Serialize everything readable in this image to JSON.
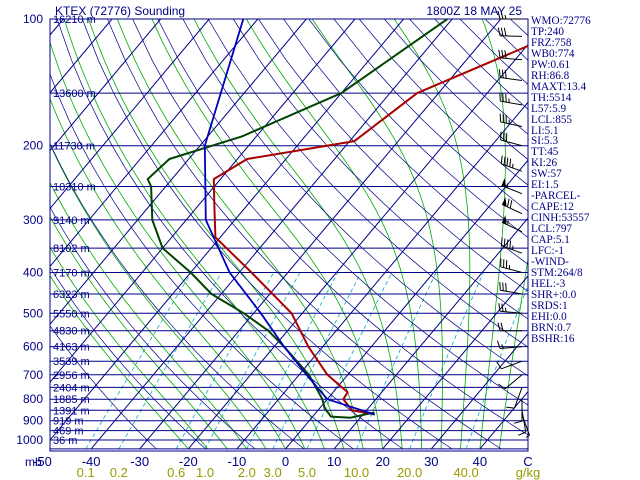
{
  "header": {
    "station": "KTEX (72776) Sounding",
    "time": "1800Z 18 MAY 25"
  },
  "indices": [
    "WMO:72776",
    "TP:240",
    "FRZ:758",
    "WB0:774",
    "PW:0.61",
    "RH:86.8",
    "MAXT:13.4",
    "TH:5514",
    "L57:5.9",
    "LCL:855",
    "LI:5.1",
    "SI:5.3",
    "TT:45",
    "KI:26",
    "SW:57",
    "EI:1.5",
    "-PARCEL-",
    "CAPE:12",
    "CINH:53557",
    "LCL:797",
    "CAP:5.1",
    "LFC:-1",
    "-WIND-",
    "STM:264/8",
    "HEL:-3",
    "SHR+:0.0",
    "SRDS:1",
    "EHI:0.0",
    "BRN:0.7",
    "BSHR:16"
  ],
  "colors": {
    "frame": "#000088",
    "isobar": "#000088",
    "isotherm": "#000088",
    "dry_adiabat": "#000088",
    "moist_adiabat": "#00aa00",
    "mixing_ratio": "#00aacc",
    "temperature": "#aa0000",
    "dewpoint": "#004400",
    "parcel": "#0000bb",
    "wind_barb": "#000000",
    "mixing_label": "#999900"
  },
  "chart_data": {
    "type": "skew-t",
    "pressure_axis": {
      "unit": "mb",
      "range": [
        1050,
        100
      ],
      "ticks": [
        100,
        200,
        300,
        400,
        500,
        600,
        700,
        800,
        900,
        1000
      ],
      "unit_label": "mb"
    },
    "temperature_axis": {
      "unit": "C",
      "ticks": [
        -50,
        -40,
        -30,
        -20,
        -10,
        0,
        10,
        20,
        30,
        40
      ],
      "tick_labels": [
        "-50",
        "-40",
        "-30",
        "-20",
        "-10",
        "0",
        "10",
        "20",
        "30",
        "40"
      ],
      "unit_label": "C"
    },
    "mixing_ratio_axis": {
      "unit": "g/kg",
      "ticks": [
        0.1,
        0.2,
        0.6,
        1.0,
        2.0,
        3.0,
        5.0,
        10.0,
        20.0,
        40.0
      ],
      "tick_labels": [
        "0.1",
        "0.2",
        "0.6",
        "1.0",
        "2.0",
        "3.0",
        "5.0",
        "10.0",
        "20.0",
        "40.0"
      ],
      "unit_label": "g/kg"
    },
    "heights": [
      {
        "p": 100,
        "label": "16210 m"
      },
      {
        "p": 150,
        "label": "13600 m"
      },
      {
        "p": 200,
        "label": "11730 m"
      },
      {
        "p": 250,
        "label": "10310 m"
      },
      {
        "p": 300,
        "label": "9140 m"
      },
      {
        "p": 350,
        "label": "8102 m"
      },
      {
        "p": 400,
        "label": "7170 m"
      },
      {
        "p": 450,
        "label": "6323 m"
      },
      {
        "p": 500,
        "label": "5550 m"
      },
      {
        "p": 550,
        "label": "4830 m"
      },
      {
        "p": 600,
        "label": "4163 m"
      },
      {
        "p": 650,
        "label": "3539 m"
      },
      {
        "p": 700,
        "label": "2956 m"
      },
      {
        "p": 750,
        "label": "2404 m"
      },
      {
        "p": 800,
        "label": "1885 m"
      },
      {
        "p": 850,
        "label": "1391 m"
      },
      {
        "p": 900,
        "label": "919 m"
      },
      {
        "p": 950,
        "label": "469 m"
      },
      {
        "p": 1000,
        "label": "36 m"
      }
    ],
    "series": [
      {
        "id": "temperature",
        "points": [
          [
            100,
            -11.4
          ],
          [
            150,
            -34.4
          ],
          [
            195,
            -39
          ],
          [
            215,
            -58
          ],
          [
            240,
            -61.4
          ],
          [
            275,
            -57
          ],
          [
            330,
            -51
          ],
          [
            400,
            -37.5
          ],
          [
            500,
            -22.2
          ],
          [
            600,
            -13
          ],
          [
            700,
            -4.2
          ],
          [
            770,
            3
          ],
          [
            800,
            3.3
          ],
          [
            850,
            7
          ],
          [
            870,
            12.4
          ]
        ]
      },
      {
        "id": "dewpoint",
        "points": [
          [
            100,
            -41
          ],
          [
            150,
            -50
          ],
          [
            190,
            -63
          ],
          [
            215,
            -74
          ],
          [
            240,
            -75
          ],
          [
            250,
            -73
          ],
          [
            300,
            -67
          ],
          [
            350,
            -60
          ],
          [
            400,
            -50
          ],
          [
            450,
            -42
          ],
          [
            500,
            -32
          ],
          [
            550,
            -24
          ],
          [
            600,
            -18
          ],
          [
            700,
            -8
          ],
          [
            800,
            -1
          ],
          [
            840,
            1
          ],
          [
            880,
            3.8
          ],
          [
            885,
            8
          ],
          [
            860,
            12
          ]
        ]
      },
      {
        "id": "parcel",
        "points": [
          [
            100,
            -83
          ],
          [
            200,
            -69
          ],
          [
            300,
            -56
          ],
          [
            400,
            -42
          ],
          [
            500,
            -28.5
          ],
          [
            600,
            -18
          ],
          [
            700,
            -8.5
          ],
          [
            800,
            0
          ],
          [
            870,
            12.4
          ]
        ]
      }
    ],
    "wind_barbs": [
      {
        "p": 100,
        "dir": 270,
        "spd": 25
      },
      {
        "p": 110,
        "dir": 272,
        "spd": 28
      },
      {
        "p": 125,
        "dir": 275,
        "spd": 30
      },
      {
        "p": 140,
        "dir": 278,
        "spd": 32
      },
      {
        "p": 160,
        "dir": 280,
        "spd": 35
      },
      {
        "p": 180,
        "dir": 282,
        "spd": 35
      },
      {
        "p": 200,
        "dir": 285,
        "spd": 30
      },
      {
        "p": 230,
        "dir": 290,
        "spd": 45
      },
      {
        "p": 260,
        "dir": 292,
        "spd": 55
      },
      {
        "p": 290,
        "dir": 295,
        "spd": 70
      },
      {
        "p": 320,
        "dir": 295,
        "spd": 55
      },
      {
        "p": 360,
        "dir": 290,
        "spd": 45
      },
      {
        "p": 400,
        "dir": 285,
        "spd": 35
      },
      {
        "p": 450,
        "dir": 280,
        "spd": 30
      },
      {
        "p": 500,
        "dir": 275,
        "spd": 25
      },
      {
        "p": 550,
        "dir": 270,
        "spd": 20
      },
      {
        "p": 600,
        "dir": 265,
        "spd": 15
      },
      {
        "p": 650,
        "dir": 250,
        "spd": 10
      },
      {
        "p": 700,
        "dir": 230,
        "spd": 10
      },
      {
        "p": 750,
        "dir": 200,
        "spd": 10
      },
      {
        "p": 800,
        "dir": 180,
        "spd": 10
      },
      {
        "p": 850,
        "dir": 170,
        "spd": 10
      },
      {
        "p": 870,
        "dir": 160,
        "spd": 5
      }
    ]
  }
}
